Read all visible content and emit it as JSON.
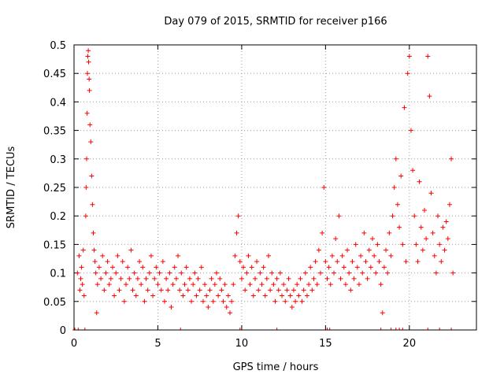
{
  "chart_data": {
    "type": "scatter",
    "title": "Day 079 of 2015, SRMTID for receiver p166",
    "xlabel": "GPS time / hours",
    "ylabel": "SRMTID / TECUs",
    "xlim": [
      0,
      24
    ],
    "ylim": [
      0,
      0.5
    ],
    "xticks": [
      0,
      5,
      10,
      15,
      20
    ],
    "yticks": [
      0,
      0.05,
      0.1,
      0.15,
      0.2,
      0.25,
      0.3,
      0.35,
      0.4,
      0.45,
      0.5
    ],
    "ytick_labels": [
      "0",
      "0.05",
      "0.1",
      "0.15",
      "0.2",
      "0.25",
      "0.3",
      "0.35",
      "0.4",
      "0.45",
      "0.5"
    ],
    "grid": true,
    "marker": "+",
    "color": "#ff0000",
    "series": [
      {
        "name": "SRMTID",
        "points": [
          [
            0.2,
            0.1
          ],
          [
            0.3,
            0.13
          ],
          [
            0.35,
            0.07
          ],
          [
            0.4,
            0.09
          ],
          [
            0.45,
            0.11
          ],
          [
            0.5,
            0.08
          ],
          [
            0.55,
            0.14
          ],
          [
            0.6,
            0.06
          ],
          [
            0.7,
            0.2
          ],
          [
            0.72,
            0.25
          ],
          [
            0.75,
            0.3
          ],
          [
            0.78,
            0.38
          ],
          [
            0.8,
            0.45
          ],
          [
            0.82,
            0.48
          ],
          [
            0.85,
            0.49
          ],
          [
            0.87,
            0.47
          ],
          [
            0.9,
            0.44
          ],
          [
            0.92,
            0.42
          ],
          [
            0.95,
            0.36
          ],
          [
            1.0,
            0.33
          ],
          [
            1.05,
            0.27
          ],
          [
            1.1,
            0.22
          ],
          [
            1.15,
            0.17
          ],
          [
            1.2,
            0.14
          ],
          [
            1.25,
            0.12
          ],
          [
            1.3,
            0.1
          ],
          [
            1.35,
            0.03
          ],
          [
            1.4,
            0.08
          ],
          [
            1.5,
            0.11
          ],
          [
            1.6,
            0.09
          ],
          [
            1.7,
            0.13
          ],
          [
            1.8,
            0.07
          ],
          [
            1.9,
            0.1
          ],
          [
            2.0,
            0.12
          ],
          [
            2.1,
            0.08
          ],
          [
            2.2,
            0.09
          ],
          [
            2.3,
            0.11
          ],
          [
            2.4,
            0.06
          ],
          [
            2.5,
            0.1
          ],
          [
            2.6,
            0.13
          ],
          [
            2.7,
            0.07
          ],
          [
            2.8,
            0.09
          ],
          [
            2.9,
            0.12
          ],
          [
            3.0,
            0.05
          ],
          [
            3.1,
            0.08
          ],
          [
            3.2,
            0.11
          ],
          [
            3.3,
            0.09
          ],
          [
            3.4,
            0.14
          ],
          [
            3.5,
            0.07
          ],
          [
            3.6,
            0.1
          ],
          [
            3.7,
            0.06
          ],
          [
            3.8,
            0.09
          ],
          [
            3.9,
            0.12
          ],
          [
            4.0,
            0.08
          ],
          [
            4.1,
            0.11
          ],
          [
            4.2,
            0.05
          ],
          [
            4.3,
            0.09
          ],
          [
            4.4,
            0.07
          ],
          [
            4.5,
            0.1
          ],
          [
            4.6,
            0.13
          ],
          [
            4.7,
            0.06
          ],
          [
            4.8,
            0.09
          ],
          [
            4.9,
            0.11
          ],
          [
            5.0,
            0.08
          ],
          [
            5.1,
            0.1
          ],
          [
            5.2,
            0.07
          ],
          [
            5.3,
            0.12
          ],
          [
            5.4,
            0.05
          ],
          [
            5.5,
            0.09
          ],
          [
            5.6,
            0.07
          ],
          [
            5.7,
            0.1
          ],
          [
            5.8,
            0.04
          ],
          [
            5.9,
            0.08
          ],
          [
            6.0,
            0.11
          ],
          [
            6.1,
            0.09
          ],
          [
            6.2,
            0.13
          ],
          [
            6.3,
            0.07
          ],
          [
            6.4,
            0.1
          ],
          [
            6.5,
            0.06
          ],
          [
            6.6,
            0.08
          ],
          [
            6.7,
            0.11
          ],
          [
            6.8,
            0.07
          ],
          [
            6.9,
            0.09
          ],
          [
            7.0,
            0.05
          ],
          [
            7.1,
            0.08
          ],
          [
            7.2,
            0.1
          ],
          [
            7.3,
            0.06
          ],
          [
            7.4,
            0.09
          ],
          [
            7.5,
            0.07
          ],
          [
            7.6,
            0.11
          ],
          [
            7.7,
            0.05
          ],
          [
            7.8,
            0.08
          ],
          [
            7.9,
            0.06
          ],
          [
            8.0,
            0.04
          ],
          [
            8.1,
            0.07
          ],
          [
            8.2,
            0.09
          ],
          [
            8.3,
            0.05
          ],
          [
            8.4,
            0.08
          ],
          [
            8.5,
            0.1
          ],
          [
            8.6,
            0.06
          ],
          [
            8.7,
            0.09
          ],
          [
            8.8,
            0.07
          ],
          [
            8.9,
            0.05
          ],
          [
            9.0,
            0.08
          ],
          [
            9.1,
            0.04
          ],
          [
            9.2,
            0.06
          ],
          [
            9.3,
            0.03
          ],
          [
            9.4,
            0.05
          ],
          [
            9.5,
            0.08
          ],
          [
            9.6,
            0.13
          ],
          [
            9.7,
            0.17
          ],
          [
            9.8,
            0.2
          ],
          [
            9.9,
            0.12
          ],
          [
            10.0,
            0.09
          ],
          [
            10.1,
            0.11
          ],
          [
            10.2,
            0.07
          ],
          [
            10.3,
            0.1
          ],
          [
            10.4,
            0.13
          ],
          [
            10.5,
            0.08
          ],
          [
            10.6,
            0.11
          ],
          [
            10.7,
            0.06
          ],
          [
            10.8,
            0.09
          ],
          [
            10.9,
            0.12
          ],
          [
            11.0,
            0.07
          ],
          [
            11.1,
            0.1
          ],
          [
            11.2,
            0.08
          ],
          [
            11.3,
            0.11
          ],
          [
            11.4,
            0.06
          ],
          [
            11.5,
            0.09
          ],
          [
            11.6,
            0.13
          ],
          [
            11.7,
            0.07
          ],
          [
            11.8,
            0.1
          ],
          [
            11.9,
            0.08
          ],
          [
            12.0,
            0.05
          ],
          [
            12.1,
            0.09
          ],
          [
            12.2,
            0.07
          ],
          [
            12.3,
            0.1
          ],
          [
            12.4,
            0.06
          ],
          [
            12.5,
            0.08
          ],
          [
            12.6,
            0.05
          ],
          [
            12.7,
            0.07
          ],
          [
            12.8,
            0.09
          ],
          [
            12.9,
            0.06
          ],
          [
            13.0,
            0.04
          ],
          [
            13.1,
            0.07
          ],
          [
            13.2,
            0.05
          ],
          [
            13.3,
            0.08
          ],
          [
            13.4,
            0.06
          ],
          [
            13.5,
            0.09
          ],
          [
            13.6,
            0.05
          ],
          [
            13.7,
            0.07
          ],
          [
            13.8,
            0.1
          ],
          [
            13.9,
            0.06
          ],
          [
            14.0,
            0.08
          ],
          [
            14.1,
            0.11
          ],
          [
            14.2,
            0.07
          ],
          [
            14.3,
            0.09
          ],
          [
            14.4,
            0.12
          ],
          [
            14.5,
            0.08
          ],
          [
            14.6,
            0.14
          ],
          [
            14.7,
            0.1
          ],
          [
            14.8,
            0.17
          ],
          [
            14.9,
            0.25
          ],
          [
            15.0,
            0.12
          ],
          [
            15.1,
            0.09
          ],
          [
            15.2,
            0.11
          ],
          [
            15.3,
            0.08
          ],
          [
            15.4,
            0.13
          ],
          [
            15.5,
            0.1
          ],
          [
            15.6,
            0.16
          ],
          [
            15.7,
            0.12
          ],
          [
            15.8,
            0.2
          ],
          [
            15.9,
            0.09
          ],
          [
            16.0,
            0.13
          ],
          [
            16.1,
            0.11
          ],
          [
            16.2,
            0.08
          ],
          [
            16.3,
            0.14
          ],
          [
            16.4,
            0.1
          ],
          [
            16.5,
            0.07
          ],
          [
            16.6,
            0.12
          ],
          [
            16.7,
            0.09
          ],
          [
            16.8,
            0.15
          ],
          [
            16.9,
            0.11
          ],
          [
            17.0,
            0.08
          ],
          [
            17.1,
            0.13
          ],
          [
            17.2,
            0.1
          ],
          [
            17.3,
            0.17
          ],
          [
            17.4,
            0.12
          ],
          [
            17.5,
            0.09
          ],
          [
            17.6,
            0.14
          ],
          [
            17.7,
            0.11
          ],
          [
            17.8,
            0.16
          ],
          [
            17.9,
            0.13
          ],
          [
            18.0,
            0.1
          ],
          [
            18.1,
            0.15
          ],
          [
            18.2,
            0.12
          ],
          [
            18.3,
            0.08
          ],
          [
            18.4,
            0.03
          ],
          [
            18.5,
            0.11
          ],
          [
            18.6,
            0.14
          ],
          [
            18.7,
            0.1
          ],
          [
            18.8,
            0.17
          ],
          [
            18.9,
            0.13
          ],
          [
            19.0,
            0.2
          ],
          [
            19.1,
            0.25
          ],
          [
            19.2,
            0.3
          ],
          [
            19.3,
            0.22
          ],
          [
            19.4,
            0.18
          ],
          [
            19.5,
            0.27
          ],
          [
            19.6,
            0.15
          ],
          [
            19.7,
            0.39
          ],
          [
            19.8,
            0.12
          ],
          [
            19.9,
            0.45
          ],
          [
            20.0,
            0.48
          ],
          [
            20.1,
            0.35
          ],
          [
            20.2,
            0.28
          ],
          [
            20.3,
            0.2
          ],
          [
            20.4,
            0.15
          ],
          [
            20.5,
            0.12
          ],
          [
            20.6,
            0.26
          ],
          [
            20.7,
            0.18
          ],
          [
            20.8,
            0.14
          ],
          [
            20.9,
            0.21
          ],
          [
            21.0,
            0.16
          ],
          [
            21.1,
            0.48
          ],
          [
            21.2,
            0.41
          ],
          [
            21.3,
            0.24
          ],
          [
            21.4,
            0.17
          ],
          [
            21.5,
            0.13
          ],
          [
            21.6,
            0.1
          ],
          [
            21.7,
            0.2
          ],
          [
            21.8,
            0.15
          ],
          [
            21.9,
            0.12
          ],
          [
            22.0,
            0.18
          ],
          [
            22.1,
            0.14
          ],
          [
            22.2,
            0.19
          ],
          [
            22.3,
            0.16
          ],
          [
            22.4,
            0.22
          ],
          [
            22.5,
            0.3
          ],
          [
            22.6,
            0.1
          ]
        ]
      }
    ],
    "zero_markers_x": [
      0.05,
      0.25,
      0.65,
      6.35,
      9.9,
      12.1,
      15.1,
      15.25,
      18.3,
      18.9,
      19.2,
      19.4,
      19.6,
      21.1,
      21.8,
      22.5
    ]
  }
}
